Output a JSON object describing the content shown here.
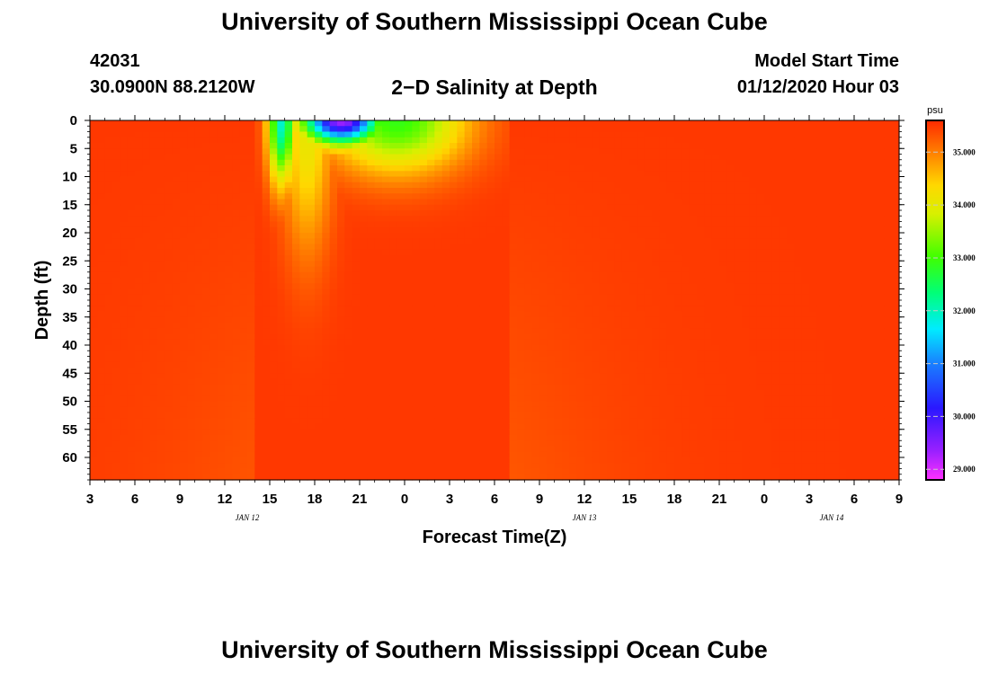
{
  "header": {
    "title": "University of Southern Mississippi Ocean Cube",
    "station_id": "42031",
    "station_coords": "30.0900N 88.2120W",
    "subtitle": "2−D Salinity at Depth",
    "start_label": "Model Start Time",
    "start_value": "01/12/2020 Hour 03"
  },
  "footer": {
    "title": "University of Southern Mississippi Ocean Cube"
  },
  "chart_data": {
    "type": "heatmap",
    "title": "2−D Salinity at Depth",
    "xlabel": "Forecast Time(Z)",
    "ylabel": "Depth (ft)",
    "x_tick_labels": [
      "3",
      "6",
      "9",
      "12",
      "15",
      "18",
      "21",
      "0",
      "3",
      "6",
      "9",
      "12",
      "15",
      "18",
      "21",
      "0",
      "3",
      "6",
      "9"
    ],
    "date_labels": [
      {
        "label": "JAN 12",
        "tick_index": 3.5
      },
      {
        "label": "JAN 13",
        "tick_index": 11
      },
      {
        "label": "JAN 14",
        "tick_index": 16.5
      }
    ],
    "x_range_hours": [
      0,
      54
    ],
    "y_ticks": [
      0,
      5,
      10,
      15,
      20,
      25,
      30,
      35,
      40,
      45,
      50,
      55,
      60
    ],
    "ylim": [
      0,
      64
    ],
    "y_inverted": true,
    "colorbar": {
      "unit": "psu",
      "range": [
        28.8,
        35.6
      ],
      "tick_labels": [
        "35.000",
        "34.000",
        "33.000",
        "32.000",
        "31.000",
        "30.000",
        "29.000"
      ],
      "tick_values": [
        35,
        34,
        33,
        32,
        31,
        30,
        29
      ]
    },
    "background_salinity": 35.5,
    "features": [
      {
        "description_hours_from_start": [
          11.5,
          27
        ],
        "min_salinity": 29.5,
        "min_at_hour": 16.5,
        "min_at_depth_ft": 1
      }
    ]
  }
}
